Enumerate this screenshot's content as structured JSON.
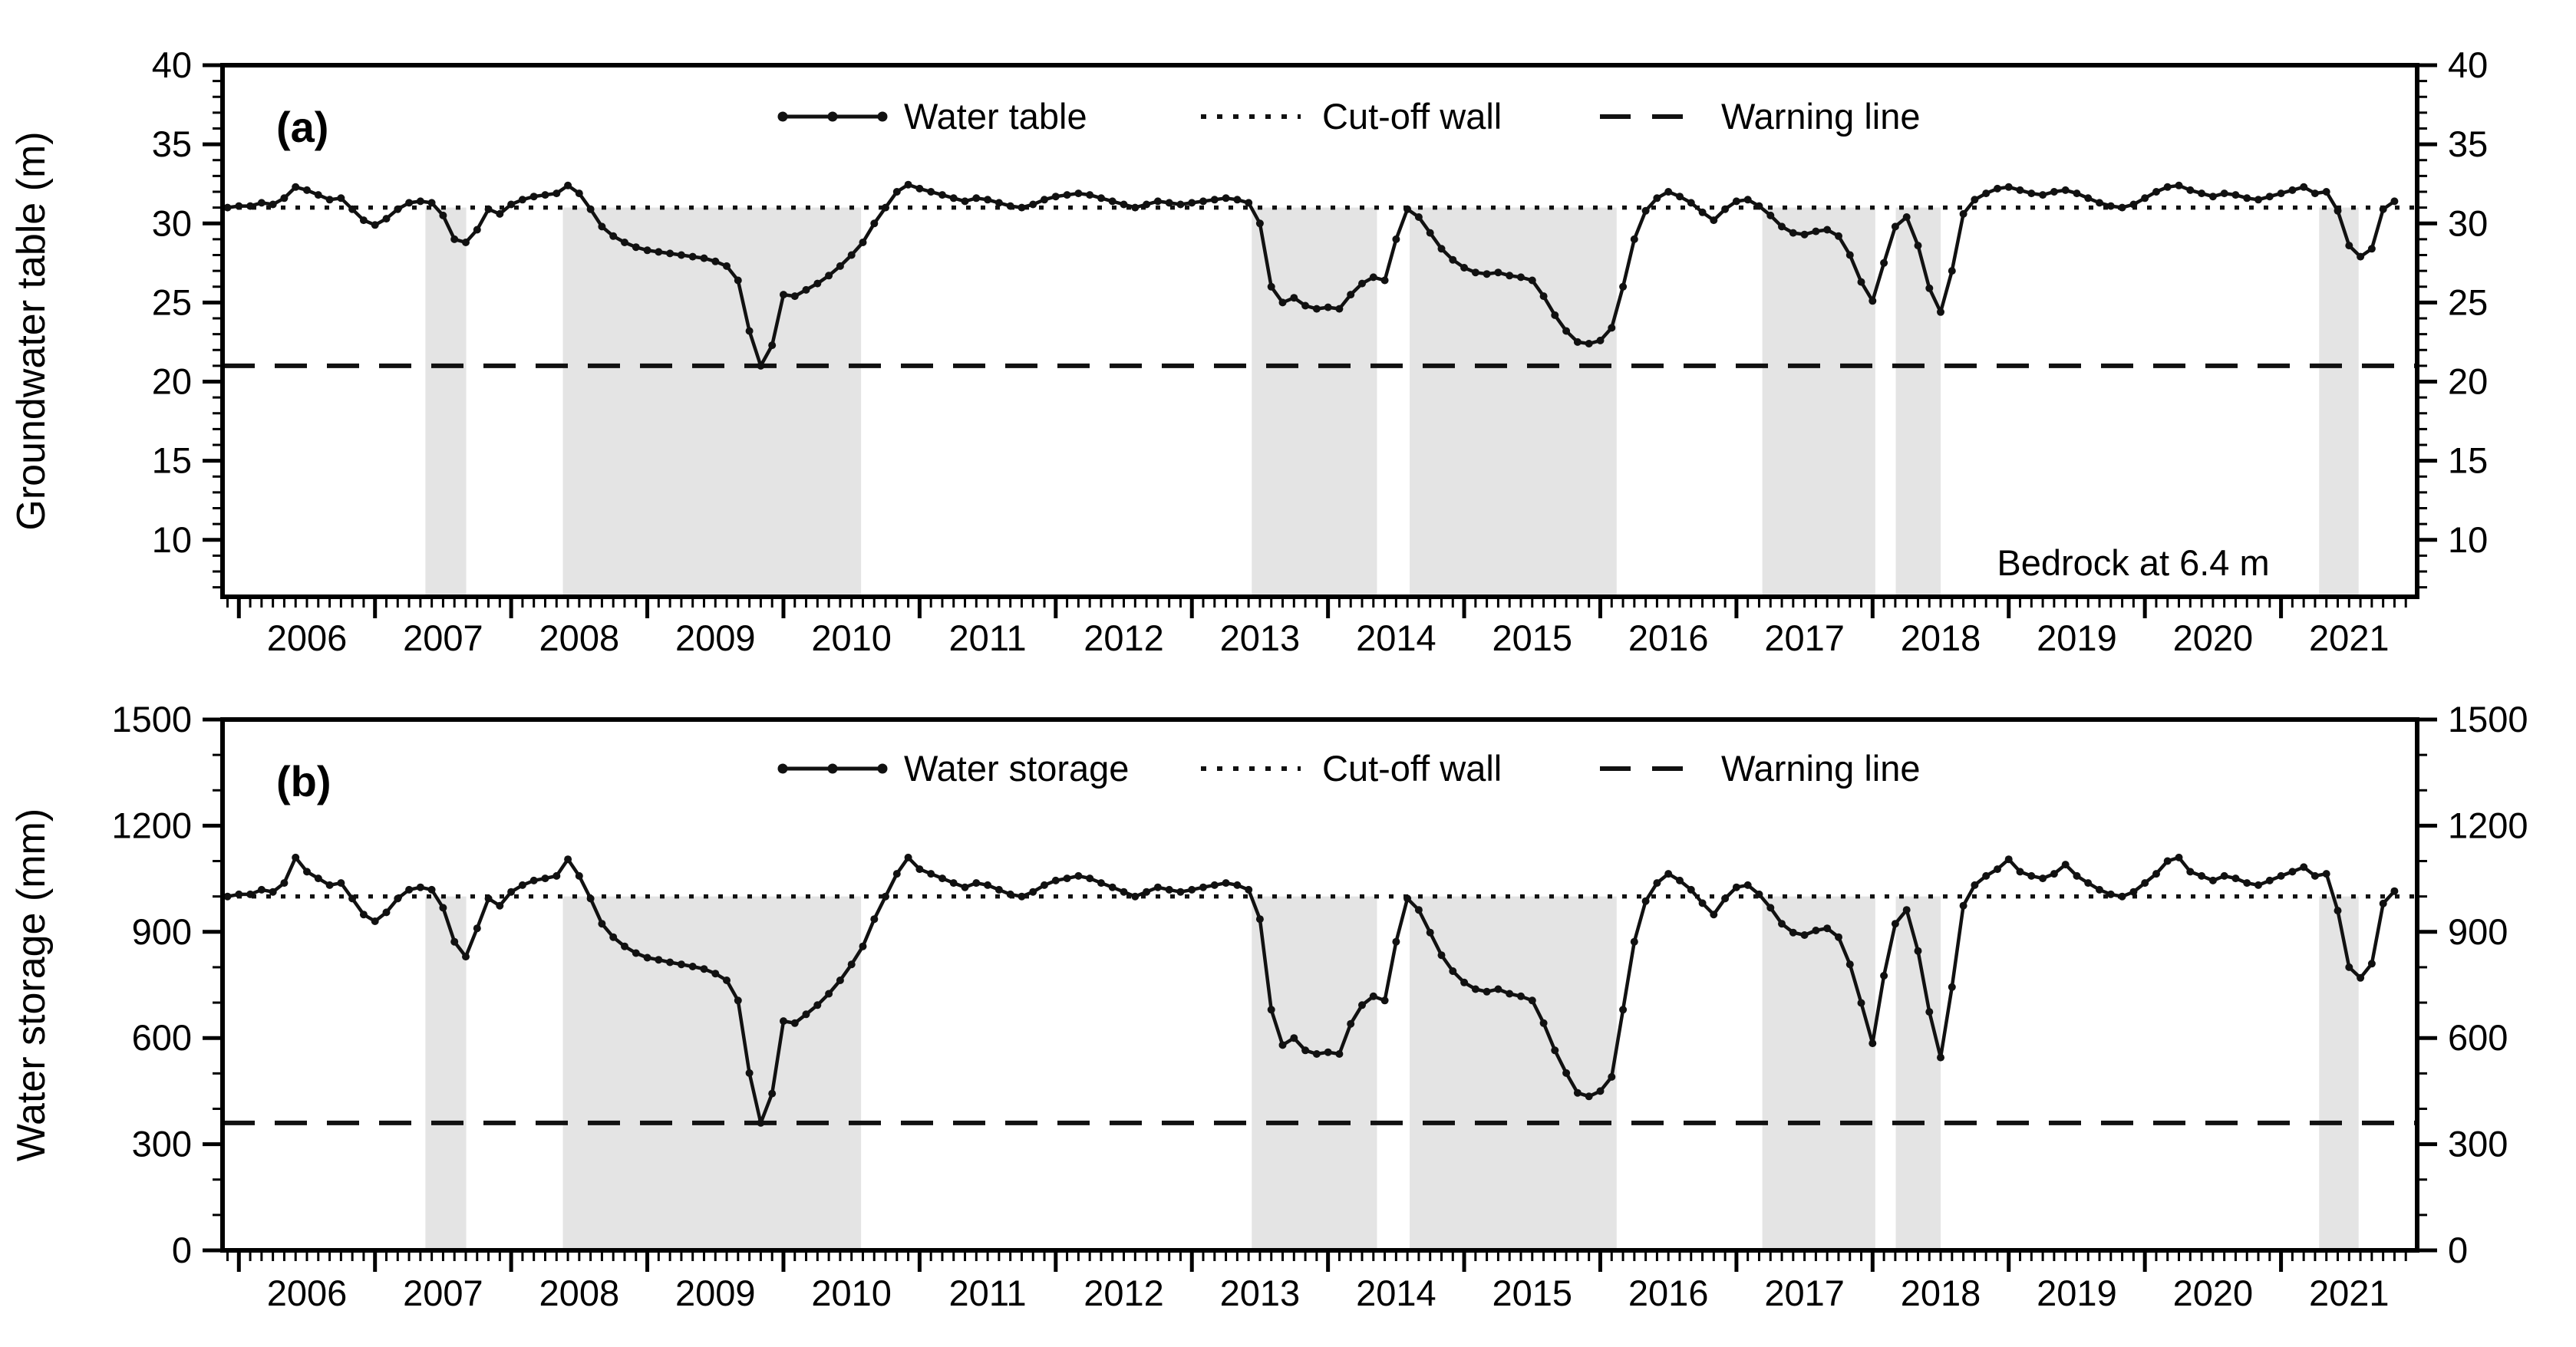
{
  "chart_data": {
    "type": "line",
    "x_axis": {
      "start_decimal_year": 2005.9167,
      "step_months": 1,
      "domain": [
        2005.88,
        2022.0
      ],
      "major_tick_years": [
        2006,
        2007,
        2008,
        2009,
        2010,
        2011,
        2012,
        2013,
        2014,
        2015,
        2016,
        2017,
        2018,
        2019,
        2020,
        2021
      ],
      "tick_labels": [
        "2006",
        "2007",
        "2008",
        "2009",
        "2010",
        "2011",
        "2012",
        "2013",
        "2014",
        "2015",
        "2016",
        "2017",
        "2018",
        "2019",
        "2020",
        "2021"
      ],
      "label_center_offset": 0.5
    },
    "shaded_bands_decimal_years": [
      [
        2007.37,
        2007.67
      ],
      [
        2008.38,
        2010.57
      ],
      [
        2013.44,
        2014.36
      ],
      [
        2014.6,
        2016.12
      ],
      [
        2017.19,
        2018.02
      ],
      [
        2018.17,
        2018.5
      ],
      [
        2021.28,
        2021.57
      ]
    ],
    "band_color": "#e4e4e4",
    "line_color": "#111111",
    "panels": [
      {
        "tag": "(a)",
        "ylabel": "Groundwater table (m)",
        "ylim": [
          6.4,
          40
        ],
        "yticks": [
          10,
          15,
          20,
          25,
          30,
          35,
          40
        ],
        "y_minor_step": 1,
        "legend": [
          {
            "label": "Water table",
            "style": "line-marker"
          },
          {
            "label": "Cut-off wall",
            "style": "dotted"
          },
          {
            "label": "Warning line",
            "style": "dashed"
          }
        ],
        "cutoff_value": 31,
        "warning_value": 21,
        "annotation": "Bedrock at 6.4 m",
        "series_name": "Water table",
        "values": [
          31.0,
          31.1,
          31.1,
          31.3,
          31.2,
          31.6,
          32.3,
          32.1,
          31.8,
          31.5,
          31.6,
          30.9,
          30.2,
          29.9,
          30.3,
          30.9,
          31.3,
          31.4,
          31.3,
          30.5,
          29.0,
          28.8,
          29.6,
          30.9,
          30.6,
          31.2,
          31.5,
          31.7,
          31.8,
          31.9,
          32.4,
          31.9,
          30.9,
          29.8,
          29.2,
          28.8,
          28.5,
          28.3,
          28.2,
          28.1,
          28.0,
          27.9,
          27.8,
          27.6,
          27.3,
          26.4,
          23.2,
          21.0,
          22.3,
          25.5,
          25.4,
          25.8,
          26.2,
          26.7,
          27.3,
          28.0,
          28.8,
          30.0,
          31.0,
          32.0,
          32.45,
          32.2,
          32.0,
          31.8,
          31.6,
          31.4,
          31.6,
          31.5,
          31.3,
          31.1,
          31.0,
          31.2,
          31.5,
          31.7,
          31.8,
          31.9,
          31.8,
          31.6,
          31.4,
          31.2,
          31.0,
          31.2,
          31.4,
          31.3,
          31.2,
          31.3,
          31.4,
          31.5,
          31.6,
          31.5,
          31.3,
          30.0,
          26.0,
          25.0,
          25.3,
          24.8,
          24.6,
          24.7,
          24.6,
          25.5,
          26.2,
          26.6,
          26.4,
          29.0,
          30.9,
          30.4,
          29.4,
          28.4,
          27.7,
          27.2,
          26.9,
          26.8,
          26.9,
          26.7,
          26.6,
          26.4,
          25.4,
          24.2,
          23.2,
          22.5,
          22.4,
          22.6,
          23.4,
          26.0,
          29.0,
          30.8,
          31.6,
          32.0,
          31.7,
          31.3,
          30.7,
          30.2,
          30.9,
          31.4,
          31.5,
          31.1,
          30.5,
          29.8,
          29.4,
          29.3,
          29.5,
          29.6,
          29.2,
          28.0,
          26.3,
          25.1,
          27.5,
          29.8,
          30.4,
          28.6,
          25.9,
          24.4,
          27.0,
          30.6,
          31.5,
          31.9,
          32.2,
          32.3,
          32.1,
          31.9,
          31.8,
          32.0,
          32.1,
          31.9,
          31.6,
          31.3,
          31.1,
          31.0,
          31.2,
          31.6,
          32.0,
          32.3,
          32.4,
          32.1,
          31.9,
          31.7,
          31.9,
          31.8,
          31.6,
          31.5,
          31.7,
          31.9,
          32.1,
          32.3,
          31.9,
          32.0,
          30.8,
          28.6,
          27.9,
          28.4,
          30.9,
          31.4
        ]
      },
      {
        "tag": "(b)",
        "ylabel": "Water storage (mm)",
        "ylim": [
          0,
          1500
        ],
        "yticks": [
          0,
          300,
          600,
          900,
          1200,
          1500
        ],
        "y_minor_step": 100,
        "legend": [
          {
            "label": "Water storage",
            "style": "line-marker"
          },
          {
            "label": "Cut-off wall",
            "style": "dotted"
          },
          {
            "label": "Warning line",
            "style": "dashed"
          }
        ],
        "cutoff_value": 1000,
        "warning_value": 360,
        "annotation": "",
        "series_name": "Water storage",
        "values": [
          1000,
          1006,
          1006,
          1019,
          1013,
          1038,
          1110,
          1070,
          1051,
          1032,
          1038,
          994,
          949,
          930,
          955,
          994,
          1019,
          1026,
          1019,
          968,
          872,
          830,
          910,
          994,
          974,
          1013,
          1032,
          1045,
          1051,
          1058,
          1105,
          1058,
          994,
          923,
          885,
          859,
          840,
          827,
          821,
          814,
          808,
          802,
          795,
          782,
          763,
          706,
          501,
          360,
          443,
          648,
          642,
          667,
          693,
          725,
          763,
          808,
          859,
          936,
          1000,
          1064,
          1110,
          1077,
          1064,
          1051,
          1038,
          1026,
          1038,
          1032,
          1019,
          1006,
          1000,
          1013,
          1032,
          1045,
          1051,
          1058,
          1051,
          1038,
          1026,
          1013,
          1000,
          1013,
          1026,
          1019,
          1013,
          1019,
          1026,
          1032,
          1038,
          1032,
          1019,
          936,
          680,
          580,
          600,
          565,
          555,
          560,
          555,
          640,
          693,
          718,
          706,
          872,
          994,
          962,
          898,
          834,
          789,
          757,
          738,
          731,
          738,
          725,
          718,
          706,
          642,
          565,
          501,
          445,
          435,
          450,
          490,
          680,
          872,
          987,
          1038,
          1064,
          1045,
          1019,
          981,
          949,
          994,
          1026,
          1032,
          1006,
          968,
          923,
          898,
          891,
          904,
          910,
          885,
          808,
          699,
          585,
          776,
          923,
          962,
          846,
          674,
          545,
          744,
          974,
          1032,
          1058,
          1077,
          1105,
          1070,
          1058,
          1051,
          1064,
          1090,
          1058,
          1038,
          1019,
          1006,
          1000,
          1013,
          1038,
          1064,
          1100,
          1110,
          1070,
          1058,
          1045,
          1058,
          1051,
          1038,
          1032,
          1045,
          1058,
          1070,
          1083,
          1058,
          1064,
          960,
          800,
          770,
          810,
          980,
          1015
        ]
      }
    ]
  }
}
